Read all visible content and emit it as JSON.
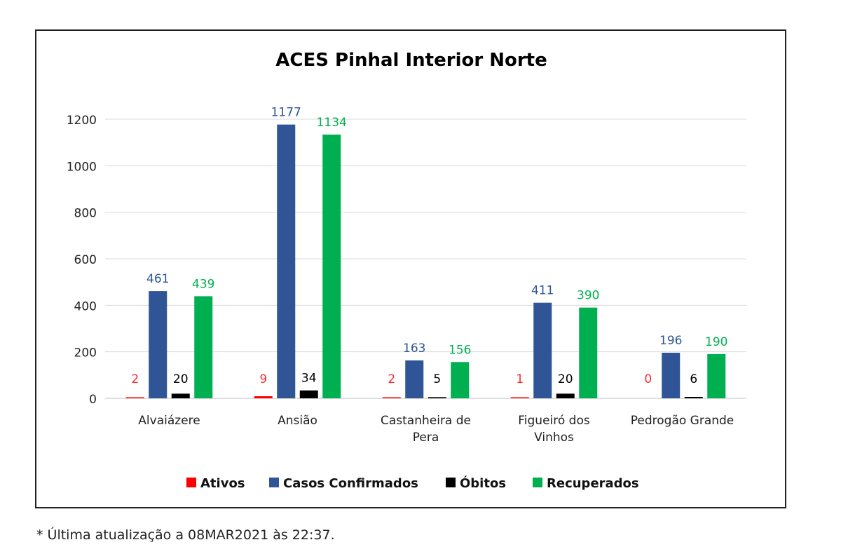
{
  "footnote": "* Última atualização a 08MAR2021 às 22:37.",
  "chart_data": {
    "type": "bar",
    "title": "ACES Pinhal Interior Norte",
    "categories": [
      [
        "Alvaiázere"
      ],
      [
        "Ansião"
      ],
      [
        "Castanheira de",
        "Pera"
      ],
      [
        "Figueiró dos",
        "Vinhos"
      ],
      [
        "Pedrogão Grande"
      ]
    ],
    "series": [
      {
        "name": "Ativos",
        "color": "#ff0000",
        "label_color": "#ff2a2a",
        "values": [
          2,
          9,
          2,
          1,
          0
        ]
      },
      {
        "name": "Casos Confirmados",
        "color": "#2f5597",
        "label_color": "#2f5597",
        "values": [
          461,
          1177,
          163,
          411,
          196
        ]
      },
      {
        "name": "Óbitos",
        "color": "#000000",
        "label_color": "#000000",
        "values": [
          20,
          34,
          5,
          20,
          6
        ]
      },
      {
        "name": "Recuperados",
        "color": "#00b050",
        "label_color": "#00b050",
        "values": [
          439,
          1134,
          156,
          390,
          190
        ]
      }
    ],
    "ylim": [
      0,
      1200
    ],
    "yticks": [
      0,
      200,
      400,
      600,
      800,
      1000,
      1200
    ],
    "grid": true,
    "legend": "bottom"
  }
}
